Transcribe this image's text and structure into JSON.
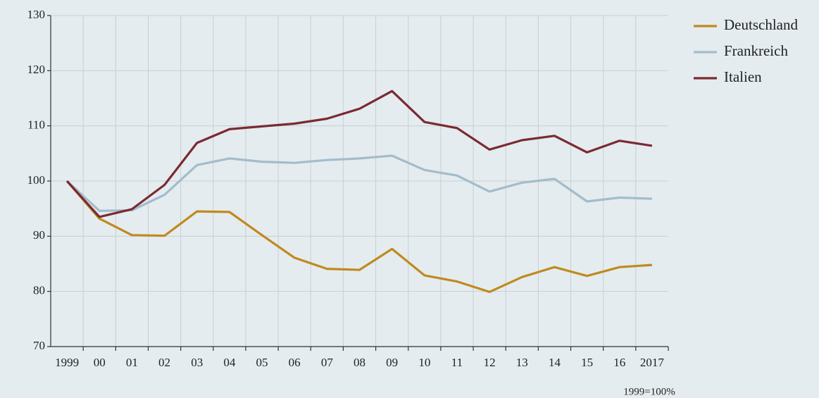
{
  "chart_data": {
    "type": "line",
    "categories": [
      "1999",
      "00",
      "01",
      "02",
      "03",
      "04",
      "05",
      "06",
      "07",
      "08",
      "09",
      "10",
      "11",
      "12",
      "13",
      "14",
      "15",
      "16",
      "2017"
    ],
    "series": [
      {
        "name": "Deutschland",
        "color": "#c08a1e",
        "values": [
          100,
          93.2,
          90.2,
          90.1,
          94.5,
          94.4,
          90.2,
          86.1,
          84.1,
          83.9,
          87.7,
          82.9,
          81.8,
          79.9,
          82.6,
          84.4,
          82.8,
          84.4,
          84.8
        ]
      },
      {
        "name": "Frankreich",
        "color": "#a3bccb",
        "values": [
          100,
          94.6,
          94.7,
          97.5,
          102.9,
          104.1,
          103.5,
          103.3,
          103.8,
          104.1,
          104.6,
          102.0,
          101.0,
          98.1,
          99.7,
          100.4,
          96.3,
          97.0,
          96.8
        ]
      },
      {
        "name": "Italien",
        "color": "#7b2a32",
        "values": [
          100,
          93.5,
          94.9,
          99.3,
          106.9,
          109.4,
          109.9,
          110.4,
          111.3,
          113.1,
          116.3,
          110.7,
          109.6,
          105.7,
          107.4,
          108.2,
          105.2,
          107.3,
          106.4
        ]
      }
    ],
    "ylim": [
      70,
      130
    ],
    "yticks": [
      70,
      80,
      90,
      100,
      110,
      120,
      130
    ],
    "grid": true,
    "legend": "right",
    "note": "1999=100%"
  }
}
